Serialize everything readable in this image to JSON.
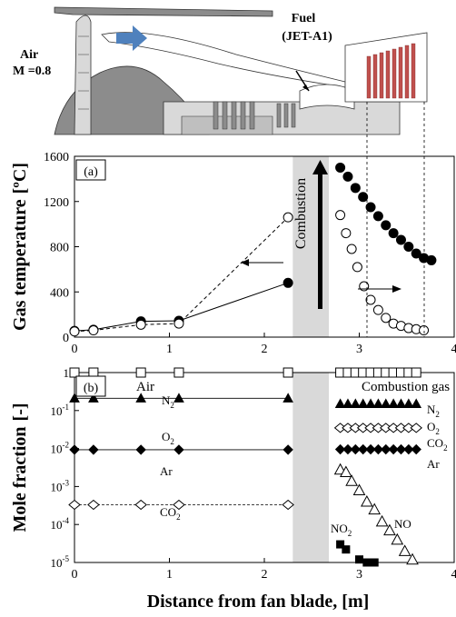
{
  "engine": {
    "air_label": "Air",
    "mach_label": "M =0.8",
    "fuel_label": "Fuel",
    "fuel_type": "(JET-A1)"
  },
  "colors": {
    "engine_dark": "#8c8c8c",
    "engine_light": "#d9d9d9",
    "flow_arrow": "#4f81bd",
    "hot_section": "#c0504d",
    "combustion_band": "#d9d9d9"
  },
  "chart_data": [
    {
      "type": "scatter",
      "panel_label": "(a)",
      "ylabel": "Gas temperature",
      "ylabel_unit": "[ºC]",
      "xlim": [
        0,
        4
      ],
      "ylim": [
        0,
        1600
      ],
      "xticks": [
        "0",
        "1",
        "2",
        "3",
        "4"
      ],
      "yticks": [
        "0",
        "400",
        "800",
        "1200",
        "1600"
      ],
      "combustion_band": [
        2.3,
        2.68
      ],
      "combustion_label": "Combustion",
      "series": [
        {
          "marker": "filled-circle",
          "line": "solid",
          "points": [
            [
              0,
              55
            ],
            [
              0.2,
              65
            ],
            [
              0.7,
              140
            ],
            [
              1.1,
              145
            ],
            [
              2.25,
              480
            ]
          ]
        },
        {
          "marker": "open-circle",
          "line": "dashed",
          "points": [
            [
              0,
              50
            ],
            [
              0.2,
              60
            ],
            [
              0.7,
              110
            ],
            [
              1.1,
              120
            ],
            [
              2.25,
              1060
            ]
          ]
        },
        {
          "marker": "filled-circle",
          "line": "none",
          "points": [
            [
              2.8,
              1500
            ],
            [
              2.88,
              1420
            ],
            [
              2.96,
              1320
            ],
            [
              3.04,
              1240
            ],
            [
              3.12,
              1150
            ],
            [
              3.2,
              1070
            ],
            [
              3.28,
              990
            ],
            [
              3.36,
              920
            ],
            [
              3.44,
              860
            ],
            [
              3.52,
              800
            ],
            [
              3.6,
              740
            ],
            [
              3.68,
              700
            ],
            [
              3.76,
              680
            ]
          ]
        },
        {
          "marker": "open-circle",
          "line": "none",
          "points": [
            [
              2.8,
              1080
            ],
            [
              2.86,
              920
            ],
            [
              2.92,
              780
            ],
            [
              2.98,
              620
            ],
            [
              3.05,
              450
            ],
            [
              3.12,
              330
            ],
            [
              3.2,
              240
            ],
            [
              3.28,
              170
            ],
            [
              3.36,
              120
            ],
            [
              3.44,
              100
            ],
            [
              3.52,
              80
            ],
            [
              3.6,
              70
            ],
            [
              3.68,
              60
            ]
          ]
        }
      ]
    },
    {
      "type": "scatter",
      "panel_label": "(b)",
      "ylabel": "Mole fraction",
      "ylabel_unit": "[-]",
      "xlabel": "Distance from fan blade, [m]",
      "yscale": "log",
      "xlim": [
        0,
        4
      ],
      "ylim": [
        1e-05,
        1
      ],
      "xticks": [
        "0",
        "1",
        "2",
        "3",
        "4"
      ],
      "yticks": [
        "1",
        "10-1",
        "10-2",
        "10-3",
        "10-4",
        "10-5"
      ],
      "combustion_band": [
        2.3,
        2.68
      ],
      "region_labels": {
        "air": "Air",
        "combustion_gas": "Combustion gas"
      },
      "series": [
        {
          "name": "N2",
          "marker": "open-square",
          "x": [
            0,
            0.2,
            0.7,
            1.1,
            2.25
          ],
          "y": [
            1,
            1,
            1,
            1,
            1
          ]
        },
        {
          "name": "O2",
          "marker": "filled-triangle",
          "x": [
            0,
            0.2,
            0.7,
            1.1,
            2.25
          ],
          "y": [
            0.21,
            0.21,
            0.21,
            0.21,
            0.21
          ]
        },
        {
          "name": "Ar",
          "marker": "filled-diamond",
          "x": [
            0,
            0.2,
            0.7,
            1.1,
            2.25
          ],
          "y": [
            0.0093,
            0.0093,
            0.0093,
            0.0093,
            0.0093
          ]
        },
        {
          "name": "CO2",
          "marker": "open-diamond",
          "x": [
            0,
            0.2,
            0.7,
            1.1,
            2.25
          ],
          "y": [
            0.00033,
            0.00033,
            0.00033,
            0.00033,
            0.00033
          ]
        },
        {
          "name": "N2",
          "marker": "open-square",
          "x": [
            2.8,
            2.88,
            2.96,
            3.04,
            3.12,
            3.2,
            3.28,
            3.36,
            3.44,
            3.52,
            3.6
          ],
          "y": [
            1,
            1,
            1,
            1,
            1,
            1,
            1,
            1,
            1,
            1,
            1
          ]
        },
        {
          "name": "O2",
          "marker": "filled-triangle",
          "x": [
            2.8,
            2.88,
            2.96,
            3.04,
            3.12,
            3.2,
            3.28,
            3.36,
            3.44,
            3.52,
            3.6
          ],
          "y": [
            0.15,
            0.15,
            0.15,
            0.15,
            0.15,
            0.15,
            0.15,
            0.15,
            0.15,
            0.15,
            0.15
          ]
        },
        {
          "name": "CO2",
          "marker": "open-diamond",
          "x": [
            2.8,
            2.88,
            2.96,
            3.04,
            3.12,
            3.2,
            3.28,
            3.36,
            3.44,
            3.52,
            3.6
          ],
          "y": [
            0.035,
            0.035,
            0.035,
            0.035,
            0.035,
            0.035,
            0.035,
            0.035,
            0.035,
            0.035,
            0.035
          ]
        },
        {
          "name": "Ar",
          "marker": "filled-diamond",
          "x": [
            2.8,
            2.88,
            2.96,
            3.04,
            3.12,
            3.2,
            3.28,
            3.36,
            3.44,
            3.52,
            3.6
          ],
          "y": [
            0.0095,
            0.0095,
            0.0095,
            0.0095,
            0.0095,
            0.0095,
            0.0095,
            0.0095,
            0.0095,
            0.0095,
            0.0095
          ]
        },
        {
          "name": "NO",
          "marker": "open-triangle",
          "x": [
            2.8,
            2.86,
            2.92,
            3.0,
            3.08,
            3.16,
            3.24,
            3.32,
            3.4,
            3.48,
            3.56
          ],
          "y": [
            0.0028,
            0.0024,
            0.0014,
            0.0008,
            0.0004,
            0.00025,
            0.00012,
            7e-05,
            4e-05,
            2e-05,
            1.2e-05
          ]
        },
        {
          "name": "NO2",
          "marker": "filled-square",
          "x": [
            2.8,
            2.86,
            3.0,
            3.08,
            3.16
          ],
          "y": [
            3e-05,
            2.2e-05,
            1.2e-05,
            1e-05,
            1e-05
          ]
        }
      ]
    }
  ]
}
